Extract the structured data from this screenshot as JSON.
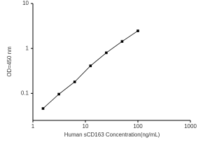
{
  "chart_data": {
    "type": "line",
    "x_label": "Human sCD163 Concentration(ng/mL)",
    "y_label": "OD=450 nm",
    "x": [
      1.56,
      3.125,
      6.25,
      12.5,
      25,
      50,
      100
    ],
    "series": [
      {
        "values": [
          0.046,
          0.096,
          0.18,
          0.41,
          0.8,
          1.43,
          2.46
        ],
        "color": "#000000"
      }
    ],
    "xlim": [
      1,
      1000
    ],
    "xticks": [
      1,
      10,
      100,
      1000
    ],
    "ylim": [
      0.025,
      10
    ],
    "yticks": [
      0.1,
      1,
      10
    ],
    "log_x": true,
    "log_y": true
  }
}
